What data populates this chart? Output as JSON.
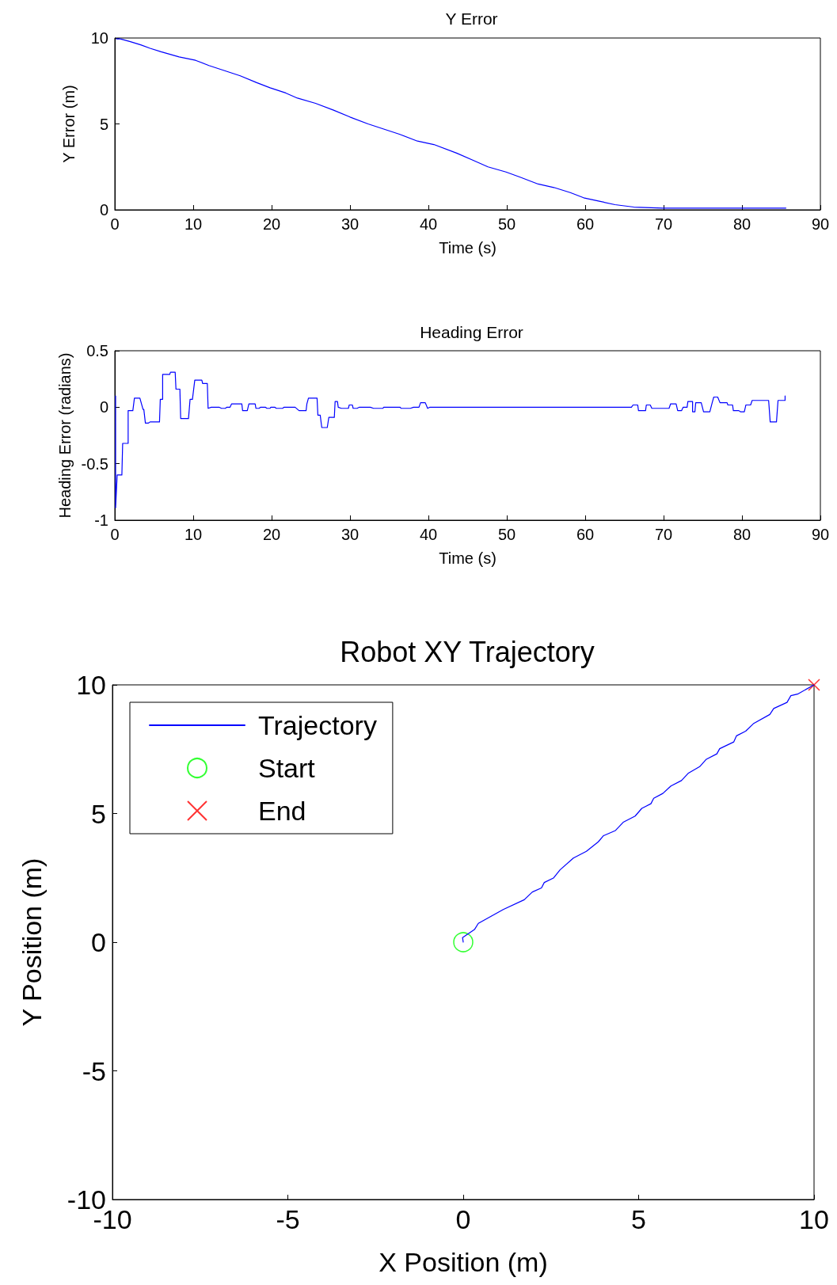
{
  "chart_data": [
    {
      "type": "line",
      "title": "Y Error",
      "xlabel": "Time (s)",
      "ylabel": "Y Error (m)",
      "xlim": [
        0,
        90
      ],
      "xticks": [
        0,
        10,
        20,
        30,
        40,
        50,
        60,
        70,
        80,
        90
      ],
      "ylim": [
        0,
        10
      ],
      "yticks": [
        0,
        5,
        10
      ],
      "grid": false,
      "line_style": "solid",
      "series": [
        {
          "color": "#0000ff",
          "x": [
            0.2,
            0.7,
            1.9,
            3.3,
            4.5,
            5.9,
            8.2,
            10.3,
            12.0,
            14.0,
            16.0,
            18.1,
            19.8,
            21.8,
            23.3,
            25.6,
            27.9,
            30.0,
            32.3,
            34.3,
            36.3,
            38.6,
            40.7,
            43.6,
            45.6,
            47.6,
            49.9,
            51.7,
            54.0,
            56.0,
            58.1,
            59.8,
            61.8,
            63.8,
            66.2,
            69.9,
            85.6
          ],
          "values": [
            9.95,
            9.95,
            9.8,
            9.6,
            9.4,
            9.2,
            8.9,
            8.7,
            8.4,
            8.1,
            7.8,
            7.4,
            7.1,
            6.8,
            6.5,
            6.2,
            5.8,
            5.4,
            5.0,
            4.7,
            4.4,
            4.0,
            3.8,
            3.3,
            2.9,
            2.5,
            2.2,
            1.9,
            1.5,
            1.3,
            1.0,
            0.7,
            0.5,
            0.3,
            0.16,
            0.1,
            0.1
          ]
        }
      ]
    },
    {
      "type": "line",
      "title": "Heading Error",
      "xlabel": "Time (s)",
      "ylabel": "Heading Error (radians)",
      "xlim": [
        0,
        90
      ],
      "xticks": [
        0,
        10,
        20,
        30,
        40,
        50,
        60,
        70,
        80,
        90
      ],
      "ylim": [
        -1,
        0.5
      ],
      "yticks": [
        -1,
        -0.5,
        0,
        0.5
      ],
      "grid": false,
      "line_style": "solid",
      "series": [
        {
          "color": "#0000ff",
          "x": [
            0.1,
            0.1,
            0.3,
            0.9,
            1.0,
            1.7,
            1.7,
            2.3,
            2.5,
            3.2,
            3.6,
            3.7,
            3.9,
            4.3,
            4.5,
            5.7,
            5.8,
            6.1,
            6.1,
            7.0,
            7.1,
            7.7,
            7.8,
            8.3,
            8.4,
            9.4,
            9.6,
            9.9,
            10.2,
            11.1,
            11.2,
            11.8,
            11.9,
            12.3,
            13.3,
            13.6,
            14.1,
            14.3,
            14.7,
            14.9,
            16.2,
            16.3,
            16.9,
            17.1,
            17.9,
            18.0,
            18.4,
            18.6,
            19.2,
            19.4,
            19.8,
            19.9,
            20.4,
            20.6,
            21.4,
            21.6,
            23.0,
            23.5,
            24.4,
            24.5,
            24.7,
            25.8,
            25.9,
            26.2,
            26.4,
            27.1,
            27.3,
            28.0,
            28.1,
            28.4,
            28.5,
            28.9,
            29.8,
            29.9,
            30.3,
            30.4,
            30.9,
            31.2,
            32.6,
            33.0,
            34.2,
            34.3,
            36.4,
            36.5,
            37.7,
            38.1,
            38.8,
            39.0,
            39.6,
            39.9,
            40.2,
            65.9,
            66.1,
            66.7,
            66.8,
            67.7,
            67.8,
            68.3,
            68.5,
            70.7,
            70.9,
            71.6,
            71.8,
            72.3,
            72.5,
            73.0,
            73.1,
            73.7,
            73.7,
            74.0,
            74.1,
            74.8,
            75.1,
            75.9,
            76.2,
            76.4,
            76.9,
            77.2,
            78.1,
            78.2,
            78.8,
            78.9,
            79.6,
            79.8,
            80.3,
            80.5,
            81.1,
            81.3,
            83.4,
            83.6,
            84.4,
            84.6,
            85.5,
            85.5
          ],
          "values": [
            0.1,
            -0.89,
            -0.6,
            -0.6,
            -0.32,
            -0.32,
            -0.03,
            -0.03,
            0.08,
            0.08,
            -0.02,
            -0.02,
            -0.14,
            -0.14,
            -0.13,
            -0.13,
            0.07,
            0.07,
            0.29,
            0.29,
            0.31,
            0.31,
            0.16,
            0.16,
            -0.1,
            -0.1,
            0.07,
            0.07,
            0.24,
            0.24,
            0.21,
            0.21,
            -0.01,
            0,
            0,
            -0.01,
            -0.01,
            0,
            0,
            0.03,
            0.03,
            -0.03,
            -0.03,
            0.03,
            0.03,
            -0.01,
            -0.01,
            0,
            0,
            -0.01,
            -0.01,
            0,
            0,
            -0.01,
            -0.01,
            0,
            0,
            -0.03,
            -0.03,
            0.03,
            0.08,
            0.08,
            -0.07,
            -0.07,
            -0.18,
            -0.18,
            -0.09,
            -0.09,
            0.05,
            0.05,
            0,
            -0.01,
            -0.01,
            0.02,
            0.02,
            -0.01,
            -0.01,
            0,
            0,
            -0.01,
            -0.01,
            0,
            0,
            -0.01,
            -0.01,
            0,
            0,
            0.04,
            0.04,
            -0.01,
            0,
            0,
            0.02,
            0.02,
            -0.03,
            -0.03,
            0.02,
            0.02,
            -0.01,
            -0.01,
            0.03,
            0.03,
            -0.03,
            -0.03,
            0,
            0,
            0.05,
            0.05,
            -0.04,
            -0.04,
            0.04,
            0.04,
            -0.04,
            -0.04,
            0.04,
            0.09,
            0.09,
            0.04,
            0.04,
            0.02,
            0.02,
            -0.03,
            -0.03,
            -0.04,
            -0.04,
            0.02,
            0.02,
            0.06,
            0.06,
            -0.13,
            -0.13,
            0.06,
            0.06,
            0.1
          ]
        }
      ]
    },
    {
      "type": "line",
      "title": "Robot XY Trajectory",
      "xlabel": "X Position (m)",
      "ylabel": "Y Position (m)",
      "xlim": [
        -10,
        10
      ],
      "xticks": [
        -10,
        -5,
        0,
        5,
        10
      ],
      "ylim": [
        -10,
        10
      ],
      "yticks": [
        -10,
        -5,
        0,
        5,
        10
      ],
      "grid": false,
      "legend": "top left",
      "series": [
        {
          "name": "Trajectory",
          "marker": "none",
          "line_style": "solid",
          "color": "#0000ff",
          "x": [
            0,
            -0.02,
            0.32,
            0.43,
            1.14,
            1.74,
            1.97,
            2.23,
            2.31,
            2.57,
            2.76,
            3.14,
            3.51,
            3.85,
            4.0,
            4.34,
            4.56,
            4.9,
            5.09,
            5.35,
            5.43,
            5.69,
            5.92,
            6.22,
            6.41,
            6.74,
            6.93,
            7.23,
            7.31,
            7.71,
            7.79,
            8.05,
            8.27,
            8.74,
            8.85,
            9.23,
            9.34,
            9.53,
            10
          ],
          "values": [
            0,
            0.18,
            0.49,
            0.73,
            1.27,
            1.65,
            1.95,
            2.11,
            2.32,
            2.49,
            2.81,
            3.27,
            3.53,
            3.9,
            4.14,
            4.34,
            4.66,
            4.9,
            5.2,
            5.38,
            5.59,
            5.78,
            6.07,
            6.28,
            6.56,
            6.82,
            7.11,
            7.32,
            7.52,
            7.78,
            8.02,
            8.2,
            8.49,
            8.85,
            9.08,
            9.32,
            9.58,
            9.64,
            10
          ]
        },
        {
          "name": "Start",
          "type": "scatter",
          "marker": "circle",
          "color": "#00ff00",
          "x": [
            0
          ],
          "values": [
            0
          ]
        },
        {
          "name": "End",
          "type": "scatter",
          "marker": "cross",
          "color": "#ff0000",
          "x": [
            10
          ],
          "values": [
            10
          ]
        }
      ]
    }
  ]
}
